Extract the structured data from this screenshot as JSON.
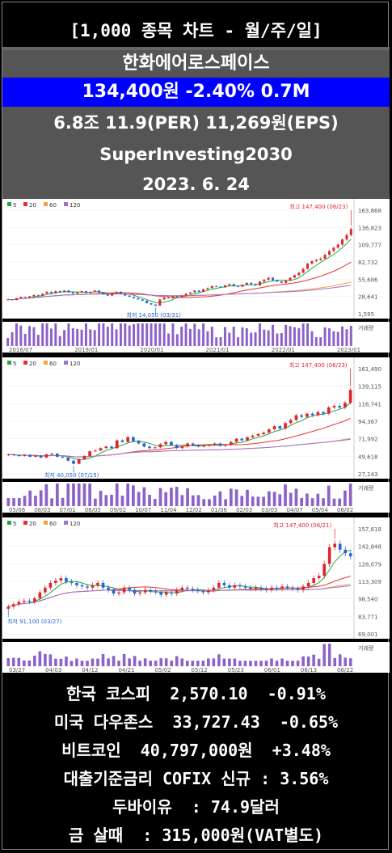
{
  "header": {
    "title": "[1,000 종목 차트 - 월/주/일]",
    "company": "한화에어로스페이스",
    "price_line": "134,400원  -2.40%  0.7M",
    "stats_line": "6.8조  11.9(PER)  11,269원(EPS)",
    "brand": "SuperInvesting2030",
    "date": "2023. 6. 24"
  },
  "colors": {
    "up": "#e0242b",
    "down": "#2563d8",
    "ma5": "#22a83a",
    "ma20": "#e83030",
    "ma60": "#f5a040",
    "ma120": "#a070d0"
  },
  "legend": [
    {
      "label": "5",
      "color": "#22a83a"
    },
    {
      "label": "20",
      "color": "#e83030"
    },
    {
      "label": "60",
      "color": "#f5a040"
    },
    {
      "label": "120",
      "color": "#a070d0"
    }
  ],
  "chart_data": [
    {
      "type": "candlestick",
      "period": "monthly",
      "y_ticks": [
        "163,868",
        "136,823",
        "109,777",
        "82,732",
        "55,686",
        "28,641",
        "1,595"
      ],
      "x_ticks": [
        "2016/07",
        "2019/01",
        "2020/01",
        "2021/01",
        "2022/01",
        "2023/01"
      ],
      "high_annotation": "최고 147,400 (06/23)",
      "low_annotation": "최저 14,050 (03/31)",
      "volume_label": "거래량",
      "ylim": [
        1595,
        163868
      ],
      "closes": [
        24000,
        23000,
        26000,
        28000,
        27000,
        29000,
        31000,
        30000,
        33000,
        36000,
        34000,
        37000,
        36000,
        38000,
        35000,
        33000,
        35000,
        37000,
        34000,
        36000,
        38000,
        35000,
        32000,
        30000,
        34000,
        36000,
        33000,
        30000,
        28000,
        26000,
        24000,
        22000,
        18000,
        16000,
        14050,
        24000,
        27000,
        26000,
        29000,
        28000,
        30000,
        33000,
        35000,
        38000,
        36000,
        40000,
        42000,
        45000,
        44000,
        43000,
        46000,
        48000,
        45000,
        44000,
        47000,
        50000,
        48000,
        46000,
        52000,
        55000,
        58000,
        54000,
        52000,
        50000,
        54000,
        58000,
        62000,
        66000,
        72000,
        80000,
        84000,
        86000,
        88000,
        94000,
        100000,
        105000,
        110000,
        118000,
        125000,
        134400
      ]
    },
    {
      "type": "candlestick",
      "period": "weekly",
      "y_ticks": [
        "161,490",
        "139,115",
        "116,741",
        "94,367",
        "71,992",
        "49,618",
        "27,243"
      ],
      "x_ticks": [
        "05/06",
        "08/03",
        "07/01",
        "08/05",
        "09/02",
        "10/07",
        "11/04",
        "12/02",
        "01/06",
        "02/03",
        "03/03",
        "04/07",
        "05/04",
        "06/02"
      ],
      "high_annotation": "최고 147,400 (06/23)",
      "low_annotation": "최저 40,050 (07/15)",
      "volume_label": "거래량",
      "ylim": [
        27243,
        161490
      ],
      "closes": [
        52000,
        51000,
        50000,
        51500,
        49000,
        50500,
        48000,
        52000,
        53000,
        49000,
        48000,
        44000,
        40050,
        46000,
        50000,
        56000,
        57000,
        60000,
        62000,
        60000,
        70000,
        68000,
        74000,
        69000,
        66000,
        62000,
        60000,
        61000,
        65000,
        68000,
        64000,
        60000,
        62000,
        66000,
        64000,
        62000,
        63000,
        64000,
        66000,
        63000,
        64000,
        68000,
        72000,
        70000,
        74000,
        76000,
        78000,
        80000,
        84000,
        88000,
        85000,
        92000,
        96000,
        102000,
        100000,
        104000,
        102000,
        106000,
        104000,
        112000,
        114000,
        112000,
        118000,
        134400
      ]
    },
    {
      "type": "candlestick",
      "period": "daily",
      "y_ticks": [
        "157,618",
        "142,848",
        "128,079",
        "113,309",
        "98,540",
        "83,771",
        "69,001"
      ],
      "x_ticks": [
        "03/27",
        "04/03",
        "04/12",
        "04/21",
        "05/02",
        "05/12",
        "05/23",
        "06/01",
        "06/13",
        "06/22"
      ],
      "high_annotation": "최고 147,400 (06/21)",
      "low_annotation": "최저 91,100 (03/27)",
      "volume_label": "거래량",
      "ylim": [
        69001,
        157618
      ],
      "closes": [
        92000,
        94000,
        96000,
        97000,
        96000,
        99000,
        104000,
        108000,
        112000,
        114000,
        116000,
        113000,
        112000,
        110000,
        109000,
        108000,
        110000,
        112000,
        108000,
        106000,
        103000,
        104000,
        108000,
        106000,
        103000,
        104000,
        106000,
        105000,
        104000,
        102000,
        104000,
        103000,
        106000,
        108000,
        107000,
        106000,
        105000,
        104000,
        106000,
        108000,
        112000,
        110000,
        108000,
        110000,
        109000,
        108000,
        107000,
        108000,
        107000,
        106000,
        108000,
        107000,
        109000,
        108000,
        107000,
        106000,
        109000,
        112000,
        116000,
        118000,
        128000,
        142000,
        145000,
        140000,
        137000,
        134400
      ]
    }
  ],
  "footer": {
    "kospi": "한국 코스피  2,570.10  -0.91%",
    "dow": "미국 다우존스  33,727.43  -0.65%",
    "btc": "비트코인  40,797,000원  +3.48%",
    "cofix": "대출기준금리 COFIX 신규 : 3.56%",
    "dubai": "두바이유  : 74.9달러",
    "gold": "금 살때  : 315,000원(VAT별도)"
  }
}
